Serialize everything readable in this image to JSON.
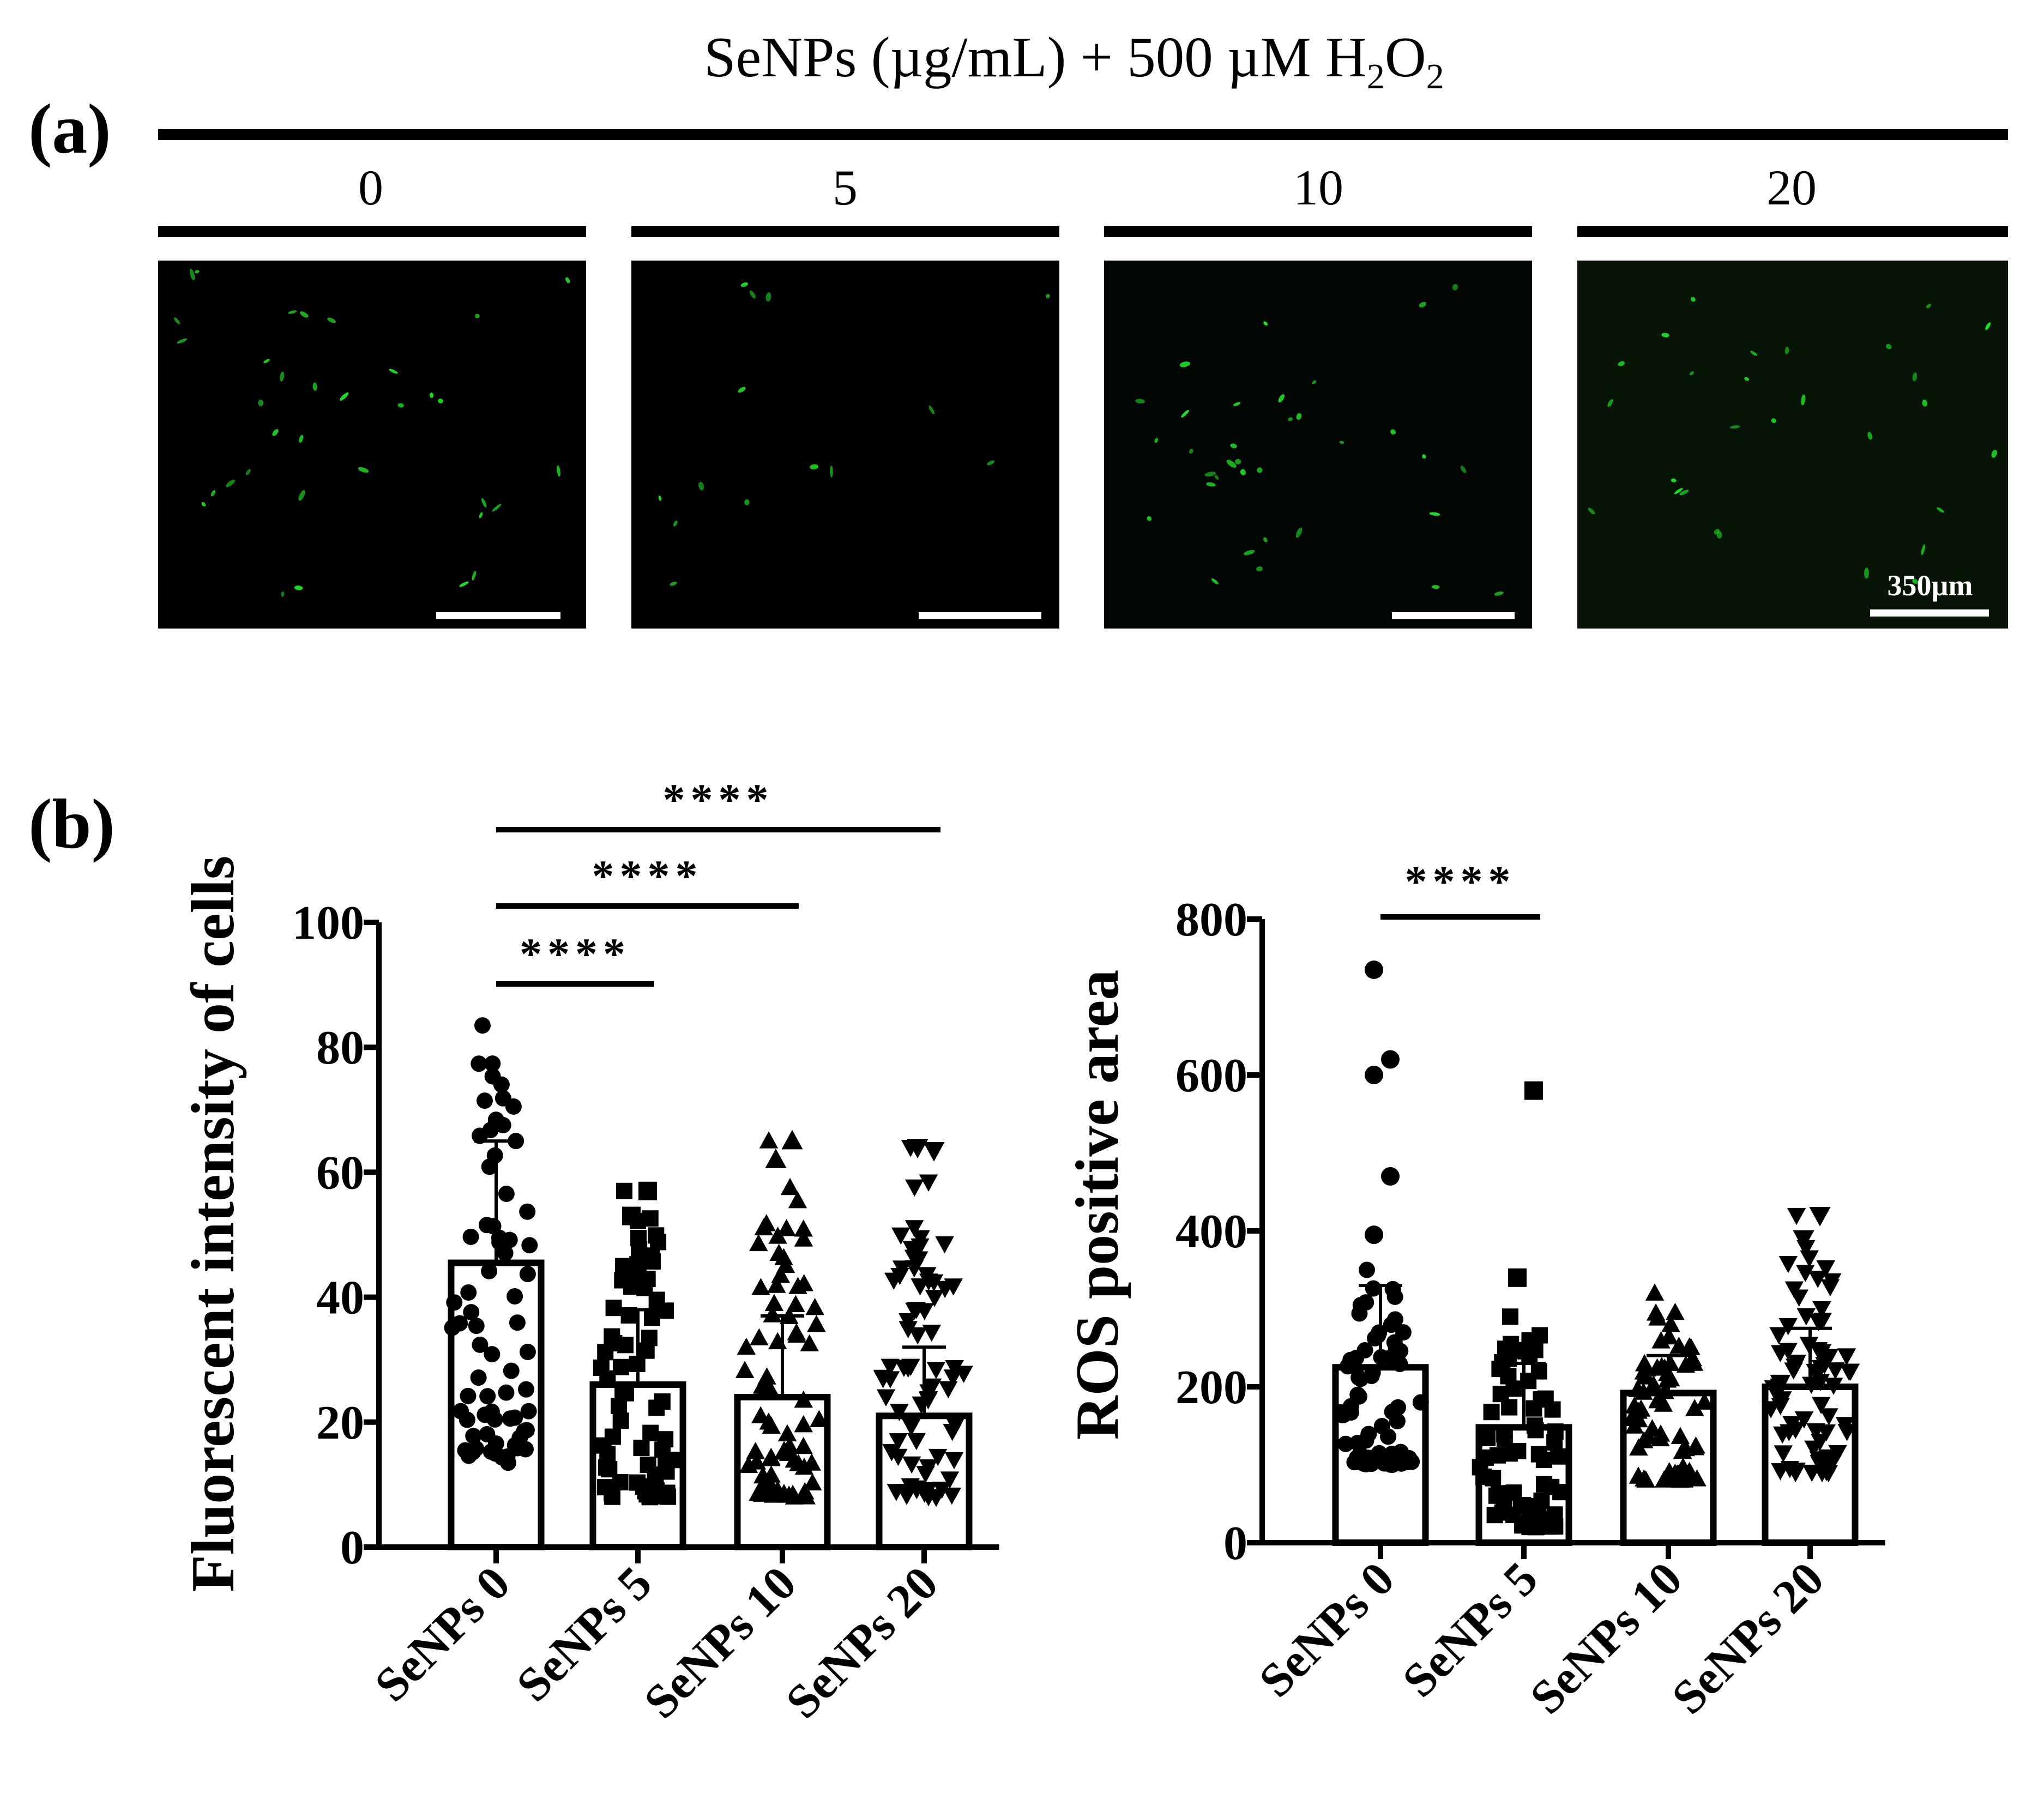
{
  "figure": {
    "label_a": "(a)",
    "label_b": "(b)",
    "header": {
      "prefix": "SeNPs (µg/mL) + 500 µM H",
      "sub1": "2",
      "mid": "O",
      "sub2": "2"
    },
    "micrographs": [
      {
        "dose": "0"
      },
      {
        "dose": "5"
      },
      {
        "dose": "10"
      },
      {
        "dose": "20",
        "scale_label": "350µm"
      }
    ],
    "colors": {
      "fluorescence": "#22e02a",
      "background": "#000000",
      "ink": "#000000"
    }
  },
  "chart_data": [
    {
      "type": "bar",
      "ylabel": "Fluorescent intensity of cells",
      "categories": [
        "SeNPs 0",
        "SeNPs 5",
        "SeNPs 10",
        "SeNPs 20"
      ],
      "values": [
        45.5,
        26,
        24,
        21
      ],
      "sd_upper": [
        65,
        38,
        37,
        32
      ],
      "ylim": [
        0,
        100
      ],
      "yticks": [
        "0",
        "20",
        "40",
        "60",
        "80",
        "100"
      ],
      "point_markers": [
        "circle",
        "square",
        "triangle-up",
        "triangle-down"
      ],
      "points_range": [
        [
          13.5,
          83.5
        ],
        [
          8,
          57
        ],
        [
          8,
          65
        ],
        [
          8,
          64
        ]
      ],
      "points_outliers": [
        [],
        [
          53,
          57
        ],
        [
          62,
          65
        ],
        [
          46,
          63.5,
          64
        ]
      ],
      "significance": [
        {
          "from": "SeNPs 0",
          "to": "SeNPs 5",
          "label": "****"
        },
        {
          "from": "SeNPs 0",
          "to": "SeNPs 10",
          "label": "****"
        },
        {
          "from": "SeNPs 0",
          "to": "SeNPs 20",
          "label": "****"
        }
      ]
    },
    {
      "type": "bar",
      "ylabel": "ROS positive area",
      "categories": [
        "SeNPs 0",
        "SeNPs 5",
        "SeNPs 10",
        "SeNPs 20"
      ],
      "values": [
        225,
        148,
        192,
        200
      ],
      "sd_upper": [
        330,
        230,
        240,
        275
      ],
      "ylim": [
        0,
        800
      ],
      "yticks": [
        "0",
        "200",
        "400",
        "600",
        "800"
      ],
      "point_markers": [
        "circle",
        "square",
        "triangle-up",
        "triangle-down"
      ],
      "points_range": [
        [
          100,
          350
        ],
        [
          20,
          290
        ],
        [
          80,
          320
        ],
        [
          90,
          420
        ]
      ],
      "points_outliers": [
        [
          395,
          470,
          600,
          620,
          735
        ],
        [
          340,
          580
        ],
        [],
        [
          390,
          420
        ]
      ],
      "significance": [
        {
          "from": "SeNPs 0",
          "to": "SeNPs 5",
          "label": "****"
        }
      ]
    }
  ]
}
